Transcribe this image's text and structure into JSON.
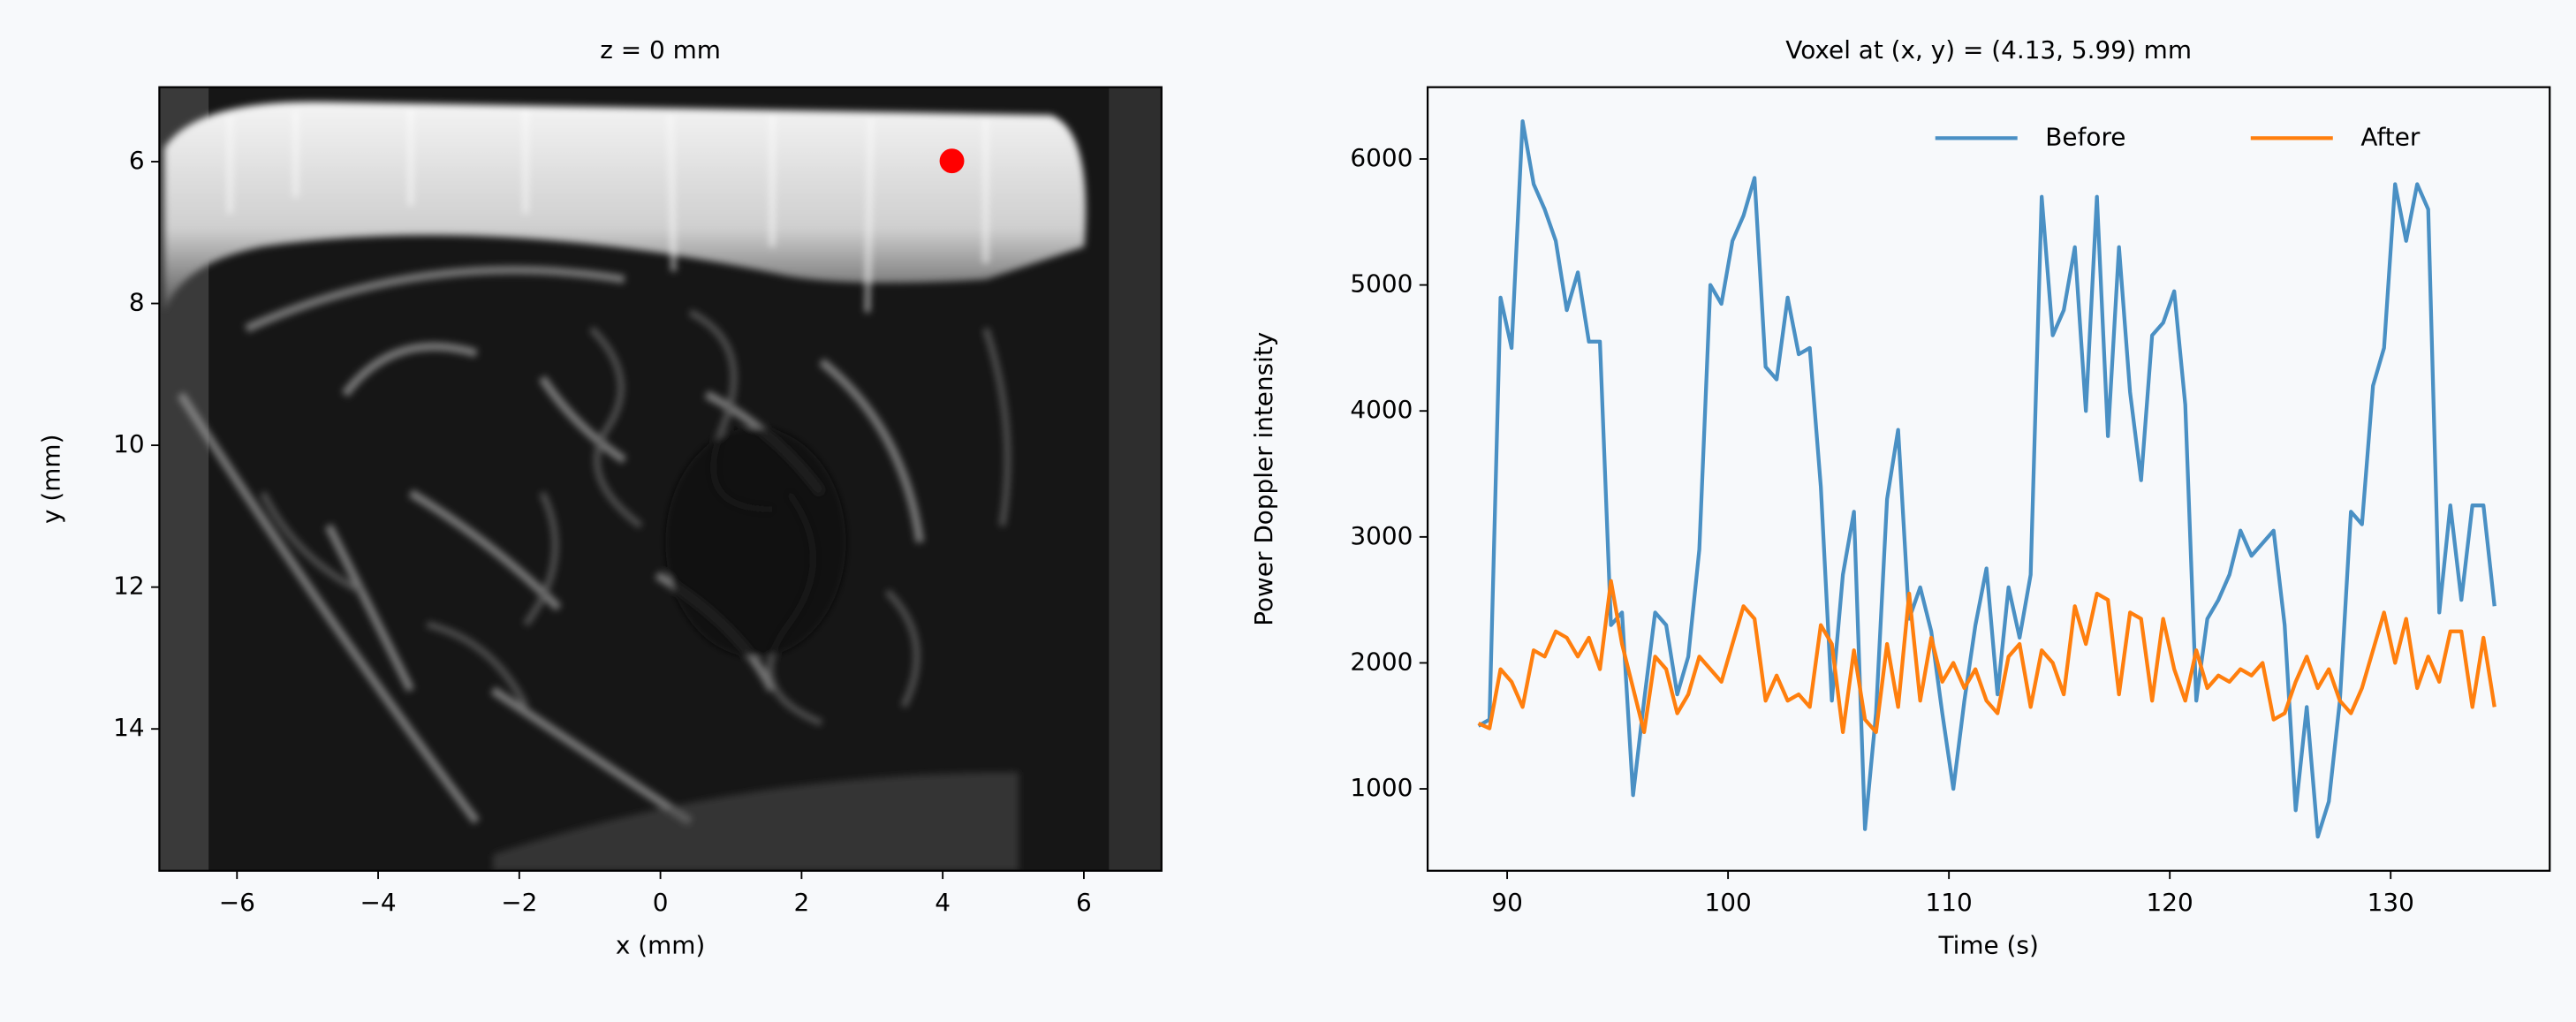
{
  "chart_data": [
    {
      "type": "image",
      "title": "z = 0 mm",
      "x_label": "x (mm)",
      "y_label": "y (mm)",
      "xlim": [
        -7.1,
        7.1
      ],
      "ylim": [
        16,
        4.95
      ],
      "xticks": [
        {
          "value": -6,
          "label": "−6"
        },
        {
          "value": -4,
          "label": "−4"
        },
        {
          "value": -2,
          "label": "−2"
        },
        0,
        2,
        4,
        6
      ],
      "yticks": [
        6,
        8,
        10,
        12,
        14
      ],
      "points": {
        "x": [
          4.13
        ],
        "y": [
          5.99
        ],
        "color": "#ff0000"
      }
    },
    {
      "type": "line",
      "title": "Voxel at (x, y) = (4.13, 5.99) mm",
      "x_label": "Time (s)",
      "y_label": "Power Doppler intensity",
      "xlim": [
        86.4,
        137.2
      ],
      "ylim": [
        350,
        6570
      ],
      "xticks": [
        90,
        100,
        110,
        120,
        130
      ],
      "yticks": [
        1000,
        2000,
        3000,
        4000,
        5000,
        6000
      ],
      "legend": "upper right",
      "x": [
        88.7,
        89.2,
        89.7,
        90.2,
        90.7,
        91.2,
        91.7,
        92.2,
        92.7,
        93.2,
        93.7,
        94.2,
        94.7,
        95.2,
        95.7,
        96.2,
        96.7,
        97.2,
        97.7,
        98.2,
        98.7,
        99.2,
        99.7,
        100.2,
        100.7,
        101.2,
        101.7,
        102.2,
        102.7,
        103.2,
        103.7,
        104.2,
        104.7,
        105.2,
        105.7,
        106.2,
        106.7,
        107.2,
        107.7,
        108.2,
        108.7,
        109.2,
        109.7,
        110.2,
        110.7,
        111.2,
        111.7,
        112.2,
        112.7,
        113.2,
        113.7,
        114.2,
        114.7,
        115.2,
        115.7,
        116.2,
        116.7,
        117.2,
        117.7,
        118.2,
        118.7,
        119.2,
        119.7,
        120.2,
        120.7,
        121.2,
        121.7,
        122.2,
        122.7,
        123.2,
        123.7,
        124.2,
        124.7,
        125.2,
        125.7,
        126.2,
        126.7,
        127.2,
        127.7,
        128.2,
        128.7,
        129.2,
        129.7,
        130.2,
        130.7,
        131.2,
        131.7,
        132.2,
        132.7,
        133.2,
        133.7,
        134.2,
        134.7
      ],
      "series": [
        {
          "name": "Before",
          "color": "#4a90c4",
          "values": [
            1500,
            1550,
            4900,
            4500,
            6300,
            5800,
            5600,
            5350,
            4800,
            5100,
            4550,
            4550,
            2300,
            2400,
            950,
            1700,
            2400,
            2300,
            1750,
            2050,
            2900,
            5000,
            4850,
            5350,
            5550,
            5850,
            4350,
            4250,
            4900,
            4450,
            4500,
            3400,
            1700,
            2700,
            3200,
            680,
            1600,
            3300,
            3850,
            2350,
            2600,
            2250,
            1600,
            1000,
            1700,
            2300,
            2750,
            1750,
            2600,
            2200,
            2700,
            5700,
            4600,
            4800,
            5300,
            4000,
            5700,
            3800,
            5300,
            4150,
            3450,
            4600,
            4700,
            4950,
            4050,
            1700,
            2350,
            2500,
            2700,
            3050,
            2850,
            2950,
            3050,
            2300,
            830,
            1650,
            620,
            900,
            1700,
            3200,
            3100,
            4200,
            4500,
            5800,
            5350,
            5800,
            5600,
            2400,
            3250,
            2500,
            3250,
            3250,
            2450
          ]
        },
        {
          "name": "After",
          "color": "#ff7f0e",
          "values": [
            1520,
            1480,
            1950,
            1850,
            1650,
            2100,
            2050,
            2250,
            2200,
            2050,
            2200,
            1950,
            2650,
            2150,
            1800,
            1450,
            2050,
            1950,
            1600,
            1750,
            2050,
            1950,
            1850,
            2150,
            2450,
            2350,
            1700,
            1900,
            1700,
            1750,
            1650,
            2300,
            2150,
            1450,
            2100,
            1550,
            1450,
            2150,
            1650,
            2550,
            1700,
            2200,
            1850,
            2000,
            1800,
            1950,
            1700,
            1600,
            2050,
            2150,
            1650,
            2100,
            2000,
            1750,
            2450,
            2150,
            2550,
            2500,
            1750,
            2400,
            2350,
            1700,
            2350,
            1950,
            1700,
            2100,
            1800,
            1900,
            1850,
            1950,
            1900,
            2000,
            1550,
            1600,
            1850,
            2050,
            1800,
            1950,
            1700,
            1600,
            1800,
            2100,
            2400,
            2000,
            2350,
            1800,
            2050,
            1850,
            2250,
            2250,
            1650,
            2200,
            1650
          ]
        }
      ]
    }
  ]
}
